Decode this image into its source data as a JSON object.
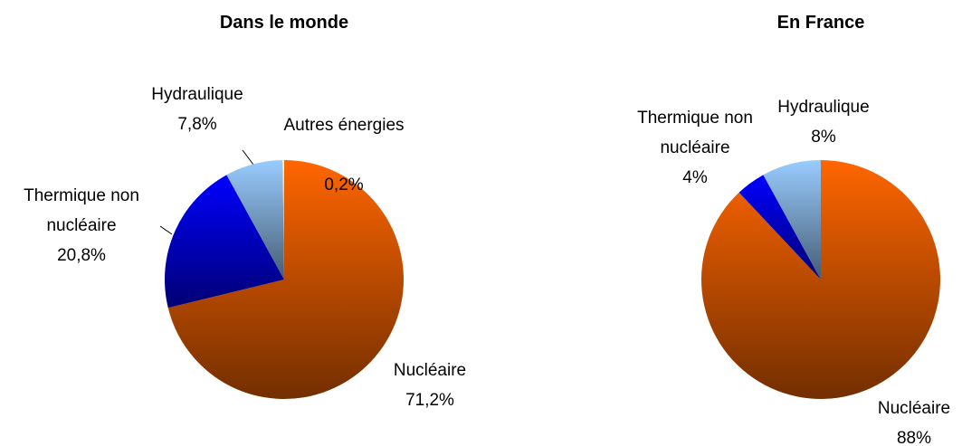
{
  "chart_data": [
    {
      "type": "pie",
      "title": "Dans le monde",
      "categories": [
        "Nucléaire",
        "Thermique non nucléaire",
        "Hydraulique",
        "Autres énergies"
      ],
      "values": [
        71.2,
        20.8,
        7.8,
        0.2
      ],
      "value_labels": [
        "71,2%",
        "20,8%",
        "7,8%",
        "0,2%"
      ],
      "colors": [
        "#ff6600",
        "#0000ff",
        "#99ccff",
        "#ffffcc"
      ]
    },
    {
      "type": "pie",
      "title": "En France",
      "categories": [
        "Nucléaire",
        "Thermique non nucléaire",
        "Hydraulique"
      ],
      "values": [
        88,
        4,
        8
      ],
      "value_labels": [
        "88%",
        "4%",
        "8%"
      ],
      "colors": [
        "#ff6600",
        "#0000ff",
        "#99ccff"
      ]
    }
  ]
}
